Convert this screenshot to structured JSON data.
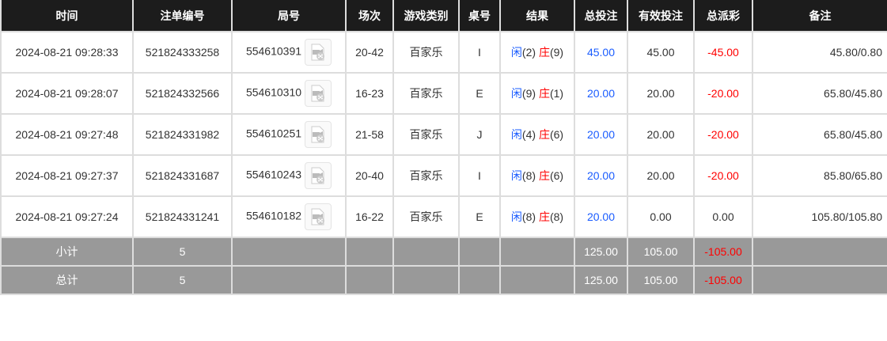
{
  "headers": [
    "时间",
    "注单编号",
    "局号",
    "场次",
    "游戏类别",
    "桌号",
    "结果",
    "总投注",
    "有效投注",
    "总派彩",
    "备注"
  ],
  "rows": [
    {
      "time": "2024-08-21 09:28:33",
      "bet_id": "521824333258",
      "round": "554610391",
      "session": "20-42",
      "game": "百家乐",
      "table": "I",
      "player": "闲",
      "player_pts": "(2)",
      "banker": "庄",
      "banker_pts": "(9)",
      "total": "45.00",
      "valid": "45.00",
      "payout": "-45.00",
      "note": "45.80/0.80"
    },
    {
      "time": "2024-08-21 09:28:07",
      "bet_id": "521824332566",
      "round": "554610310",
      "session": "16-23",
      "game": "百家乐",
      "table": "E",
      "player": "闲",
      "player_pts": "(9)",
      "banker": "庄",
      "banker_pts": "(1)",
      "total": "20.00",
      "valid": "20.00",
      "payout": "-20.00",
      "note": "65.80/45.80"
    },
    {
      "time": "2024-08-21 09:27:48",
      "bet_id": "521824331982",
      "round": "554610251",
      "session": "21-58",
      "game": "百家乐",
      "table": "J",
      "player": "闲",
      "player_pts": "(4)",
      "banker": "庄",
      "banker_pts": "(6)",
      "total": "20.00",
      "valid": "20.00",
      "payout": "-20.00",
      "note": "65.80/45.80"
    },
    {
      "time": "2024-08-21 09:27:37",
      "bet_id": "521824331687",
      "round": "554610243",
      "session": "20-40",
      "game": "百家乐",
      "table": "I",
      "player": "闲",
      "player_pts": "(8)",
      "banker": "庄",
      "banker_pts": "(6)",
      "total": "20.00",
      "valid": "20.00",
      "payout": "-20.00",
      "note": "85.80/65.80"
    },
    {
      "time": "2024-08-21 09:27:24",
      "bet_id": "521824331241",
      "round": "554610182",
      "session": "16-22",
      "game": "百家乐",
      "table": "E",
      "player": "闲",
      "player_pts": "(8)",
      "banker": "庄",
      "banker_pts": "(8)",
      "total": "20.00",
      "valid": "0.00",
      "payout": "0.00",
      "note": "105.80/105.80"
    }
  ],
  "subtotal": {
    "label": "小计",
    "count": "5",
    "total": "125.00",
    "valid": "105.00",
    "payout": "-105.00"
  },
  "grand_total": {
    "label": "总计",
    "count": "5",
    "total": "125.00",
    "valid": "105.00",
    "payout": "-105.00"
  },
  "colors": {
    "header": "#1c1c1c",
    "player": "#1a5cff",
    "banker": "#ff0000",
    "summary": "#999999"
  },
  "icons": {
    "replay": "video-replay-icon"
  }
}
